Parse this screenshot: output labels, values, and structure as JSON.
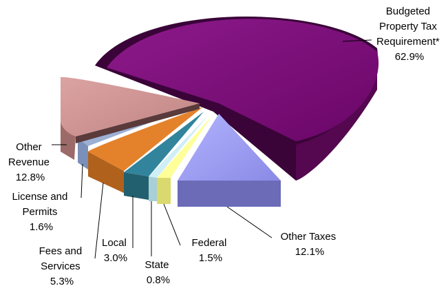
{
  "chart_data": {
    "type": "pie",
    "title": "",
    "slices": [
      {
        "name": "Budgeted Property Tax Requirement*",
        "value": 62.9,
        "value_label": "62.9%",
        "color": "#7a0a78"
      },
      {
        "name": "Other Taxes",
        "value": 12.1,
        "value_label": "12.1%",
        "color": "#9c9cf2"
      },
      {
        "name": "Federal",
        "value": 1.5,
        "value_label": "1.5%",
        "color": "#ffff99"
      },
      {
        "name": "State",
        "value": 0.8,
        "value_label": "0.8%",
        "color": "#cfeef5"
      },
      {
        "name": "Local",
        "value": 3.0,
        "value_label": "3.0%",
        "color": "#31849b"
      },
      {
        "name": "Fees and Services",
        "value": 5.3,
        "value_label": "5.3%",
        "color": "#e4822b"
      },
      {
        "name": "License and Permits",
        "value": 1.6,
        "value_label": "1.6%",
        "color": "#9cb0d4"
      },
      {
        "name": "Other Revenue",
        "value": 12.8,
        "value_label": "12.8%",
        "color": "#d09594"
      }
    ],
    "style": "3d-exploded",
    "legend": "none"
  }
}
